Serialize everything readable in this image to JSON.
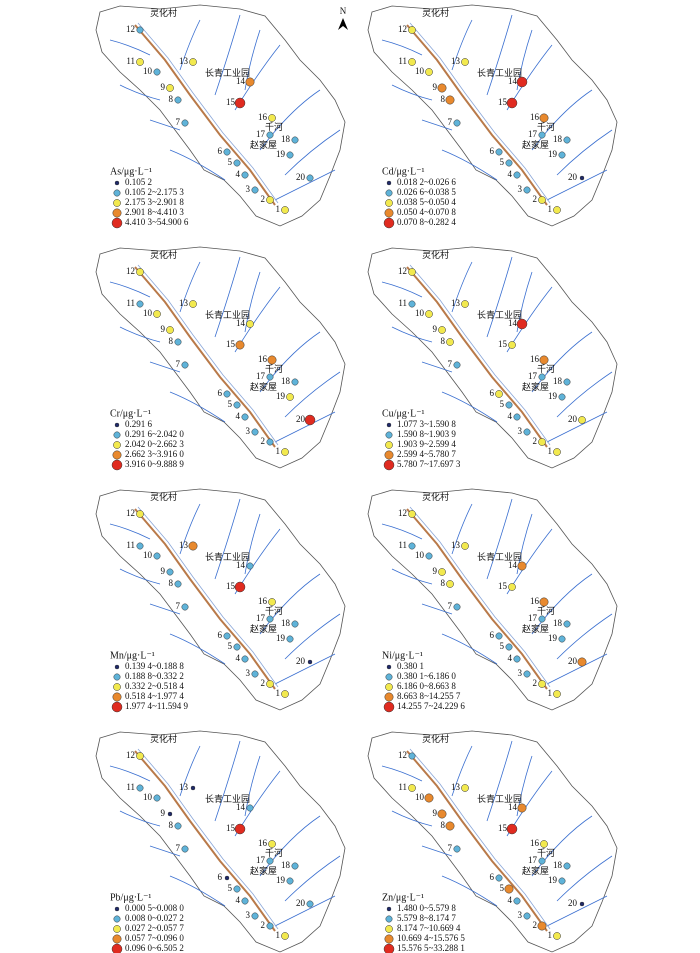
{
  "north": "N",
  "place_names": [
    "灵化村",
    "长青工业园",
    "千河",
    "赵家屋"
  ],
  "sites": [
    "1",
    "2",
    "3",
    "4",
    "5",
    "6",
    "7",
    "8",
    "9",
    "10",
    "11",
    "12",
    "13",
    "14",
    "15",
    "16",
    "17",
    "18",
    "19",
    "20"
  ],
  "panels": [
    {
      "title": "As/μg·L⁻¹",
      "classes": [
        "0.105 2",
        "0.105 2~2.175 3",
        "2.175 3~2.901 8",
        "2.901 8~4.410 3",
        "4.410 3~54.900 6"
      ],
      "site_classes": [
        2,
        2,
        1,
        1,
        1,
        1,
        1,
        1,
        2,
        1,
        2,
        1,
        2,
        3,
        4,
        2,
        1,
        1,
        1,
        1
      ]
    },
    {
      "title": "Cd/μg·L⁻¹",
      "classes": [
        "0.018 2~0.026 6",
        "0.026 6~0.038 5",
        "0.038 5~0.050 4",
        "0.050 4~0.070 8",
        "0.070 8~0.282 4"
      ],
      "site_classes": [
        2,
        2,
        1,
        1,
        1,
        1,
        1,
        3,
        3,
        2,
        2,
        2,
        2,
        4,
        4,
        3,
        1,
        1,
        1,
        0
      ]
    },
    {
      "title": "Cr/μg·L⁻¹",
      "classes": [
        "0.291 6",
        "0.291 6~2.042 0",
        "2.042 0~2.662 3",
        "2.662 3~3.916 0",
        "3.916 0~9.888 9"
      ],
      "site_classes": [
        2,
        1,
        1,
        1,
        1,
        1,
        1,
        1,
        2,
        2,
        1,
        2,
        2,
        2,
        3,
        3,
        1,
        1,
        2,
        4
      ]
    },
    {
      "title": "Cu/μg·L⁻¹",
      "classes": [
        "1.077 3~1.590 8",
        "1.590 8~1.903 9",
        "1.903 9~2.599 4",
        "2.599 4~5.780 7",
        "5.780 7~17.697 3"
      ],
      "site_classes": [
        2,
        2,
        1,
        1,
        1,
        2,
        1,
        2,
        2,
        2,
        1,
        2,
        2,
        4,
        2,
        3,
        1,
        1,
        1,
        2
      ]
    },
    {
      "title": "Mn/μg·L⁻¹",
      "classes": [
        "0.139 4~0.188 8",
        "0.188 8~0.332 2",
        "0.332 2~0.518 4",
        "0.518 4~1.977 4",
        "1.977 4~11.594 9"
      ],
      "site_classes": [
        2,
        2,
        1,
        1,
        1,
        1,
        1,
        1,
        1,
        1,
        1,
        2,
        3,
        1,
        4,
        2,
        1,
        1,
        1,
        0
      ]
    },
    {
      "title": "Ni/μg·L⁻¹",
      "classes": [
        "0.380 1",
        "0.380 1~6.186 0",
        "6.186 0~8.663 8",
        "8.663 8~14.255 7",
        "14.255 7~24.229 6"
      ],
      "site_classes": [
        2,
        2,
        1,
        1,
        1,
        1,
        1,
        2,
        2,
        1,
        1,
        2,
        2,
        3,
        2,
        3,
        1,
        1,
        1,
        3
      ]
    },
    {
      "title": "Pb/μg·L⁻¹",
      "classes": [
        "0.000 5~0.008 0",
        "0.008 0~0.027 2",
        "0.027 2~0.057 7",
        "0.057 7~0.096 0",
        "0.096 0~6.505 2"
      ],
      "site_classes": [
        2,
        1,
        1,
        1,
        1,
        0,
        1,
        1,
        0,
        1,
        1,
        2,
        0,
        1,
        4,
        2,
        1,
        1,
        1,
        1
      ]
    },
    {
      "title": "Zn/μg·L⁻¹",
      "classes": [
        "1.480 0~5.579 8",
        "5.579 8~8.174 7",
        "8.174 7~10.669 4",
        "10.669 4~15.576 5",
        "15.576 5~33.288 1"
      ],
      "site_classes": [
        2,
        3,
        1,
        1,
        3,
        1,
        1,
        3,
        3,
        3,
        2,
        1,
        2,
        3,
        4,
        2,
        1,
        1,
        1,
        0
      ]
    }
  ]
}
